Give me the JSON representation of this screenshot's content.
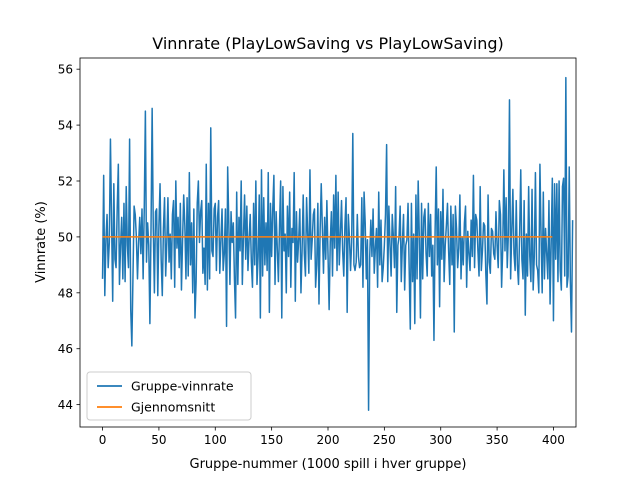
{
  "chart_data": {
    "type": "line",
    "title": "Vinnrate (PlayLowSaving vs PlayLowSaving)",
    "xlabel": "Gruppe-nummer (1000 spill i hver gruppe)",
    "ylabel": "Vinnrate (%)",
    "xlim": [
      -20,
      420
    ],
    "ylim": [
      43.2,
      56.4
    ],
    "xticks": [
      0,
      50,
      100,
      150,
      200,
      250,
      300,
      350,
      400
    ],
    "yticks": [
      44,
      46,
      48,
      50,
      52,
      54,
      56
    ],
    "grid": false,
    "legend_position": "lower-left",
    "series": [
      {
        "name": "Gruppe-vinnrate",
        "color": "#1f77b4",
        "x_start": 0,
        "x_step": 1,
        "values": [
          48.5,
          52.2,
          47.9,
          49.9,
          50.8,
          48.9,
          49.8,
          53.5,
          50.6,
          47.7,
          51.9,
          49.2,
          48.9,
          51.0,
          52.6,
          48.3,
          49.7,
          50.7,
          48.5,
          51.2,
          48.4,
          51.8,
          49.7,
          48.9,
          53.5,
          47.4,
          46.1,
          48.6,
          51.1,
          50.8,
          50.0,
          48.5,
          49.8,
          50.7,
          49.4,
          51.0,
          48.5,
          51.0,
          54.5,
          49.1,
          50.5,
          49.7,
          46.9,
          50.3,
          54.6,
          50.3,
          48.0,
          50.9,
          51.0,
          47.9,
          50.4,
          51.9,
          49.2,
          47.9,
          50.3,
          51.4,
          48.6,
          49.8,
          51.4,
          49.1,
          50.1,
          48.5,
          50.8,
          51.3,
          48.2,
          52.0,
          49.6,
          50.7,
          48.9,
          51.2,
          48.1,
          49.9,
          51.5,
          50.4,
          48.5,
          51.4,
          48.6,
          52.3,
          49.0,
          50.5,
          48.0,
          51.0,
          47.1,
          48.4,
          51.2,
          52.0,
          49.8,
          50.9,
          51.3,
          48.7,
          49.6,
          48.3,
          52.6,
          48.1,
          51.2,
          48.5,
          53.9,
          49.5,
          49.3,
          51.0,
          51.2,
          48.8,
          50.7,
          51.3,
          48.7,
          49.9,
          51.0,
          48.8,
          49.4,
          51.0,
          46.8,
          52.5,
          50.5,
          48.3,
          50.9,
          49.8,
          50.5,
          48.5,
          47.1,
          51.6,
          48.3,
          50.7,
          49.5,
          52.0,
          48.3,
          50.0,
          51.5,
          49.2,
          51.1,
          48.8,
          49.9,
          50.8,
          49.1,
          48.2,
          51.2,
          49.0,
          52.0,
          48.3,
          49.3,
          51.5,
          47.1,
          52.4,
          48.6,
          51.4,
          49.0,
          50.5,
          48.8,
          52.3,
          47.3,
          51.2,
          49.3,
          51.0,
          52.2,
          48.3,
          50.9,
          49.6,
          48.4,
          50.4,
          52.0,
          47.1,
          51.8,
          49.5,
          50.1,
          48.0,
          51.1,
          49.3,
          51.6,
          48.2,
          50.3,
          49.8,
          52.3,
          47.7,
          50.9,
          49.1,
          49.9,
          51.0,
          48.0,
          49.5,
          51.5,
          49.4,
          48.6,
          51.4,
          50.1,
          48.7,
          52.4,
          49.2,
          49.9,
          50.8,
          51.0,
          48.2,
          49.0,
          51.2,
          47.6,
          50.2,
          51.9,
          50.3,
          48.7,
          50.7,
          49.2,
          51.3,
          49.4,
          47.4,
          49.8,
          50.9,
          48.6,
          51.5,
          49.6,
          52.2,
          48.8,
          51.6,
          49.0,
          50.1,
          51.3,
          49.5,
          48.6,
          50.4,
          51.4,
          47.3,
          50.8,
          50.0,
          48.8,
          49.8,
          53.7,
          49.0,
          48.8,
          49.1,
          50.8,
          49.3,
          48.9,
          49.0,
          51.4,
          48.2,
          51.6,
          50.5,
          48.5,
          49.9,
          43.8,
          49.3,
          50.6,
          49.3,
          51.0,
          48.7,
          49.6,
          50.3,
          48.2,
          51.6,
          49.0,
          50.6,
          48.4,
          48.9,
          49.7,
          50.8,
          53.3,
          48.4,
          51.1,
          49.7,
          48.6,
          50.8,
          50.0,
          48.9,
          51.8,
          47.3,
          49.7,
          50.0,
          51.1,
          48.4,
          49.8,
          50.8,
          48.1,
          49.7,
          49.9,
          51.2,
          48.9,
          46.7,
          51.2,
          48.4,
          50.1,
          46.9,
          51.5,
          48.5,
          52.0,
          50.0,
          47.1,
          51.2,
          48.5,
          50.7,
          51.0,
          49.4,
          48.6,
          51.2,
          49.3,
          50.8,
          48.6,
          49.7,
          46.3,
          50.2,
          52.5,
          49.0,
          51.0,
          47.5,
          50.9,
          49.2,
          51.7,
          48.4,
          49.7,
          50.4,
          51.2,
          49.5,
          48.3,
          51.1,
          49.0,
          50.8,
          46.6,
          51.1,
          50.3,
          48.9,
          49.6,
          51.5,
          48.5,
          50.0,
          49.0,
          50.5,
          51.1,
          48.2,
          50.2,
          49.4,
          48.8,
          50.6,
          49.3,
          52.2,
          48.9,
          50.8,
          50.6,
          49.5,
          48.6,
          51.8,
          48.8,
          49.5,
          50.5,
          50.4,
          48.7,
          47.6,
          51.5,
          49.1,
          48.7,
          50.3,
          50.2,
          49.4,
          49.2,
          50.9,
          49.7,
          48.9,
          51.3,
          50.8,
          48.2,
          49.6,
          52.4,
          49.5,
          51.4,
          48.9,
          50.1,
          54.9,
          48.5,
          50.2,
          51.7,
          49.4,
          48.8,
          51.3,
          49.0,
          48.3,
          50.1,
          52.4,
          49.2,
          48.5,
          51.3,
          47.2,
          50.1,
          48.6,
          51.8,
          49.3,
          48.4,
          51.7,
          48.1,
          49.3,
          52.3,
          49.0,
          48.8,
          48.0,
          52.6,
          50.1,
          48.0,
          51.6,
          48.5,
          50.3,
          49.4,
          48.5,
          51.3,
          47.6,
          49.8,
          52.1,
          47.0,
          51.9,
          49.2,
          51.9,
          48.4,
          52.0,
          48.8,
          48.1,
          51.8,
          52.1,
          48.6,
          55.7,
          48.2,
          48.6,
          52.5,
          48.4,
          46.6,
          50.6
        ]
      },
      {
        "name": "Gjennomsnitt",
        "color": "#ff7f0e",
        "x": [
          0,
          399
        ],
        "values": [
          50.0,
          50.0
        ]
      }
    ]
  }
}
